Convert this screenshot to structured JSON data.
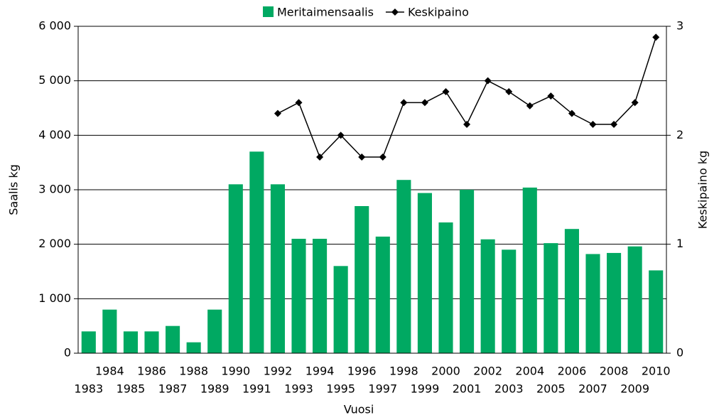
{
  "chart_data": {
    "type": "bar-line",
    "legend": "top",
    "grid": true,
    "xlabel": "Vuosi",
    "ylabel": "Saalis  kg",
    "y2label": "Keskipaino kg",
    "categories": [
      "1983",
      "1984",
      "1985",
      "1986",
      "1987",
      "1988",
      "1989",
      "1990",
      "1991",
      "1992",
      "1993",
      "1994",
      "1995",
      "1996",
      "1997",
      "1998",
      "1999",
      "2000",
      "2001",
      "2002",
      "2003",
      "2004",
      "2005",
      "2006",
      "2007",
      "2008",
      "2009",
      "2010"
    ],
    "series": [
      {
        "name": "Meritaimensaalis",
        "type": "bar",
        "color": "#00a962",
        "values": [
          400,
          800,
          400,
          400,
          500,
          200,
          800,
          3100,
          3700,
          3100,
          2100,
          2100,
          1600,
          2700,
          2140,
          3180,
          2940,
          2400,
          3000,
          2090,
          1900,
          3040,
          2020,
          2280,
          1820,
          1840,
          1960,
          1520
        ]
      },
      {
        "name": "Keskipaino",
        "type": "line",
        "axis": "y2",
        "color": "#000000",
        "values": [
          null,
          null,
          null,
          null,
          null,
          null,
          null,
          null,
          null,
          2.2,
          2.3,
          1.8,
          2.0,
          1.8,
          1.8,
          2.3,
          2.3,
          2.4,
          2.1,
          2.5,
          2.4,
          2.27,
          2.36,
          2.2,
          2.1,
          2.1,
          2.3,
          2.9
        ]
      }
    ],
    "ylim": [
      0,
      6000
    ],
    "yticks": [
      0,
      {
        "value": 1000,
        "label": "1 000"
      },
      {
        "value": 2000,
        "label": "2 000"
      },
      {
        "value": 3000,
        "label": "3 000"
      },
      {
        "value": 4000,
        "label": "4 000"
      },
      {
        "value": 5000,
        "label": "5 000"
      },
      {
        "value": 6000,
        "label": "6 000"
      }
    ],
    "y2lim": [
      0,
      3
    ],
    "y2ticks": [
      0,
      1,
      2,
      3
    ]
  }
}
